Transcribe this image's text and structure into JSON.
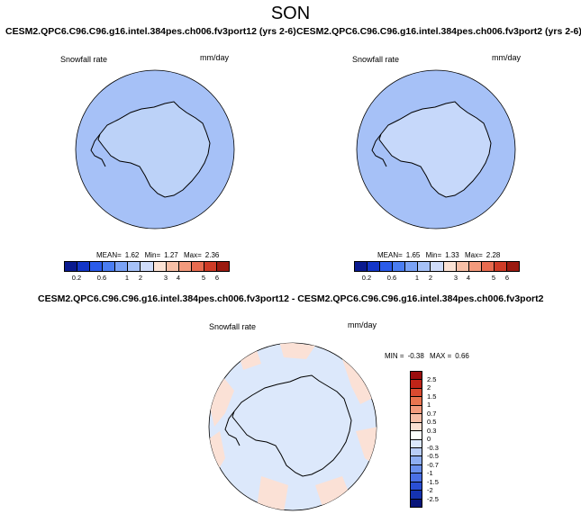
{
  "season": "SON",
  "panels": [
    {
      "title": "CESM2.QPC6.C96.C96.g16.intel.384pes.ch006.fv3port12 (yrs 2-6)",
      "variable": "Snowfall rate",
      "units": "mm/day",
      "stats": {
        "mean_label": "MEAN=",
        "mean": "1.62",
        "min_label": "Min=",
        "min": "1.27",
        "max_label": "Max=",
        "max": "2.36"
      },
      "ocean_color": "#a6c1f7",
      "land_color": "#bcd2f8"
    },
    {
      "title": "CESM2.QPC6.C96.C96.g16.intel.384pes.ch006.fv3port2 (yrs 2-6)",
      "variable": "Snowfall rate",
      "units": "mm/day",
      "stats": {
        "mean_label": "MEAN=",
        "mean": "1.65",
        "min_label": "Min=",
        "min": "1.33",
        "max_label": "Max=",
        "max": "2.28"
      },
      "ocean_color": "#a6c1f7",
      "land_color": "#c6d8fa"
    },
    {
      "title": "CESM2.QPC6.C96.C96.g16.intel.384pes.ch006.fv3port12 - CESM2.QPC6.C96.C96.g16.intel.384pes.ch006.fv3port2",
      "variable": "Snowfall rate",
      "units": "mm/day",
      "stats": {
        "min_label": "MIN =",
        "min": "-0.38",
        "max_label": "MAX =",
        "max": "0.66"
      },
      "ocean_color": "#dce8fb",
      "land_color": "#dce8fb",
      "warm_patch_color": "#fbe1d6"
    }
  ],
  "abs_colorbar": {
    "colors": [
      "#0a1a8f",
      "#1436c8",
      "#2a5bea",
      "#4a7df2",
      "#7aa2f6",
      "#a6c1f7",
      "#cfdcfa",
      "#fbe2d4",
      "#f7bfa6",
      "#f39a7c",
      "#e86b4f",
      "#cf3b26",
      "#9b1a10"
    ],
    "labels": [
      "0.2",
      "0.6",
      "1",
      "2",
      "3",
      "4",
      "5",
      "6"
    ]
  },
  "diff_colorbar": {
    "colors": [
      "#9b0d0d",
      "#bf2418",
      "#d94a30",
      "#e9744f",
      "#f39a7c",
      "#f7bda6",
      "#fbdfd2",
      "#ffffff",
      "#dce8fb",
      "#b9cdf6",
      "#8eaef2",
      "#6a90ee",
      "#4a70e6",
      "#2a4fd4",
      "#1533b0",
      "#08157a"
    ],
    "labels": [
      "2.5",
      "2",
      "1.5",
      "1",
      "0.7",
      "0.5",
      "0.3",
      "0",
      "-0.3",
      "-0.5",
      "-0.7",
      "-1",
      "-1.5",
      "-2",
      "-2.5"
    ]
  }
}
